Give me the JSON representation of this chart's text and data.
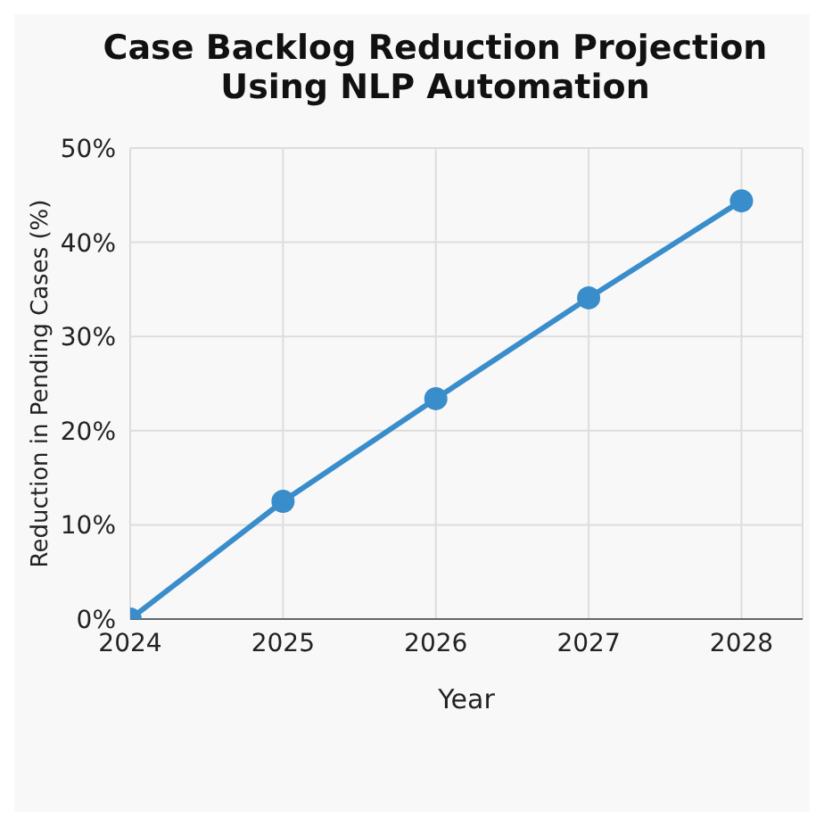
{
  "chart_data": {
    "type": "line",
    "title": "Case Backlog Reduction Projection Using NLP Automation",
    "xlabel": "Year",
    "ylabel": "Reduction in Pending Cases (%)",
    "x": [
      2024,
      2025,
      2026,
      2027,
      2028
    ],
    "series": [
      {
        "color": "#3a8dcb",
        "values": [
          0,
          12.5,
          23.4,
          34.1,
          44.4
        ]
      }
    ],
    "xlim": [
      2024,
      2028.4
    ],
    "xticks": [
      2024,
      2025,
      2026,
      2027,
      2028
    ],
    "ylim": [
      0,
      50
    ],
    "yticks": [
      {
        "value": 0,
        "label": "0%"
      },
      {
        "value": 10,
        "label": "10%"
      },
      {
        "value": 20,
        "label": "20%"
      },
      {
        "value": 30,
        "label": "30%"
      },
      {
        "value": 40,
        "label": "40%"
      },
      {
        "value": 50,
        "label": "50%"
      }
    ],
    "grid": true,
    "marker": "circle",
    "line_style": "solid",
    "legend": false
  }
}
